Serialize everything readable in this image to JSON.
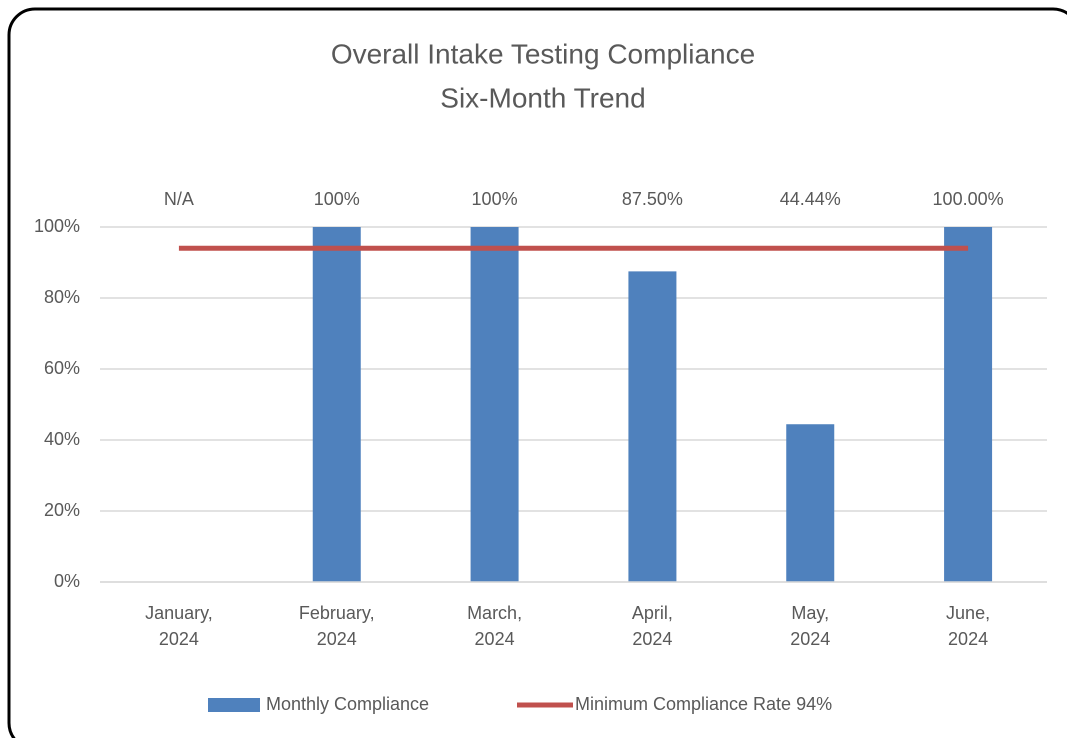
{
  "chart_data": {
    "type": "bar",
    "title": "Overall Intake Testing Compliance",
    "subtitle": "Six-Month Trend",
    "categories": [
      "January, 2024",
      "February, 2024",
      "March, 2024",
      "April, 2024",
      "May, 2024",
      "June, 2024"
    ],
    "series": [
      {
        "name": "Monthly Compliance",
        "type": "bar",
        "color": "#4f81bd",
        "values": [
          null,
          100,
          100,
          87.5,
          44.44,
          100
        ],
        "value_labels": [
          "N/A",
          "100%",
          "100%",
          "87.50%",
          "44.44%",
          "100.00%"
        ]
      },
      {
        "name": "Minimum Compliance Rate 94%",
        "type": "line",
        "color": "#c0504d",
        "values": [
          94,
          94,
          94,
          94,
          94,
          94
        ]
      }
    ],
    "ylim": [
      0,
      100
    ],
    "yticks": [
      {
        "value": 0,
        "label": "0%"
      },
      {
        "value": 20,
        "label": "20%"
      },
      {
        "value": 40,
        "label": "40%"
      },
      {
        "value": 60,
        "label": "60%"
      },
      {
        "value": 80,
        "label": "80%"
      },
      {
        "value": 100,
        "label": "100%"
      }
    ],
    "grid": true,
    "legend": "bottom"
  }
}
